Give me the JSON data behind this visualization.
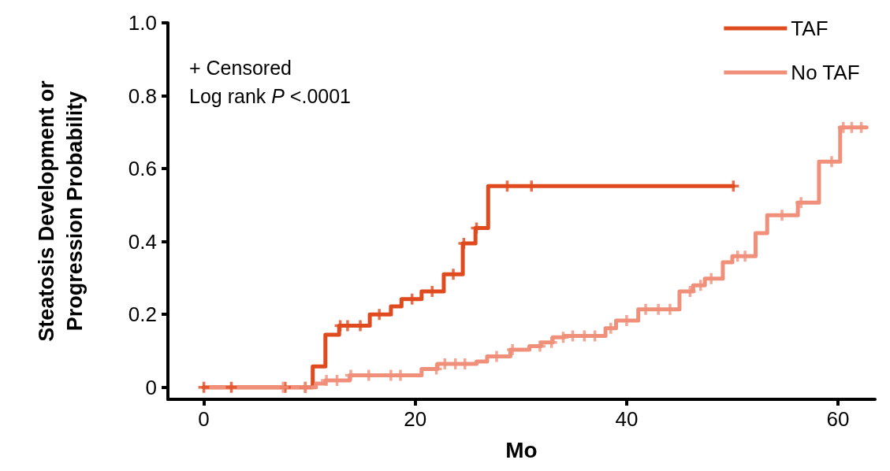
{
  "chart_data": {
    "type": "step",
    "xlabel": "Mo",
    "ylabel": "Steatosis Development or\nProgression Probability",
    "annotations": [
      "+ Censored",
      "Log rank P <.0001"
    ],
    "xlim": [
      -3.4,
      63.5
    ],
    "xticks": [
      0,
      20,
      40,
      60
    ],
    "ylim": [
      -0.033,
      1.0
    ],
    "yticks": [
      {
        "value": 0,
        "label": "0"
      },
      0.2,
      0.4,
      0.6,
      0.8,
      {
        "value": 1,
        "label": "1.0"
      }
    ],
    "grid": false,
    "legend": "top right",
    "marker": "none",
    "line_style": "solid",
    "series": [
      {
        "name": "TAF",
        "color": "#e04a1f",
        "x": [
          0,
          10.3,
          11.5,
          12.8,
          15.7,
          17.7,
          18.7,
          20.6,
          22.7,
          24.5,
          25.7,
          26.9,
          50.1
        ],
        "values": [
          0,
          0.057,
          0.144,
          0.169,
          0.2,
          0.222,
          0.242,
          0.263,
          0.31,
          0.395,
          0.437,
          0.552,
          0.552
        ]
      },
      {
        "name": "No TAF",
        "color": "#f0907a",
        "x": [
          0,
          10.6,
          11.5,
          13.8,
          20.6,
          22.1,
          25.8,
          26.8,
          29.0,
          30.8,
          31.9,
          33.0,
          34.1,
          38.0,
          39.0,
          41.1,
          45.0,
          46.3,
          47.4,
          49.1,
          50.0,
          52.2,
          53.3,
          56.2,
          58.2,
          60.2,
          62.7
        ],
        "values": [
          0,
          0.01,
          0.019,
          0.033,
          0.05,
          0.064,
          0.071,
          0.085,
          0.103,
          0.113,
          0.123,
          0.137,
          0.141,
          0.162,
          0.183,
          0.214,
          0.263,
          0.28,
          0.298,
          0.343,
          0.36,
          0.423,
          0.472,
          0.507,
          0.619,
          0.713,
          0.713
        ]
      },
      {
        "type": "scatter",
        "marker": "cross",
        "color": "#e04a1f",
        "x": [
          0,
          2.6,
          7.7,
          9.6,
          12.9,
          13.6,
          14.8,
          16.6,
          19.7,
          21.6,
          23.6,
          24.6,
          25.8,
          28.7,
          31.0,
          50.1
        ],
        "values": [
          0,
          0,
          0,
          0,
          0.169,
          0.169,
          0.169,
          0.2,
          0.242,
          0.263,
          0.31,
          0.395,
          0.437,
          0.552,
          0.552,
          0.552
        ]
      },
      {
        "type": "scatter",
        "marker": "cross",
        "color": "#f0907a",
        "x": [
          7.5,
          9.6,
          11.6,
          12.6,
          13.9,
          15.6,
          17.7,
          18.6,
          22.0,
          22.8,
          23.8,
          24.7,
          27.7,
          29.2,
          31.8,
          32.9,
          34.0,
          34.9,
          36.0,
          37.0,
          38.5,
          40.0,
          41.8,
          43.0,
          44.1,
          46.0,
          47.0,
          48.0,
          50.5,
          51.2,
          54.7,
          56.5,
          59.4,
          60.5,
          61.3,
          62.2
        ],
        "values": [
          0,
          0,
          0.019,
          0.019,
          0.033,
          0.033,
          0.033,
          0.033,
          0.05,
          0.064,
          0.064,
          0.064,
          0.085,
          0.103,
          0.113,
          0.123,
          0.137,
          0.141,
          0.141,
          0.141,
          0.162,
          0.183,
          0.214,
          0.214,
          0.214,
          0.263,
          0.28,
          0.298,
          0.36,
          0.36,
          0.472,
          0.507,
          0.619,
          0.713,
          0.713,
          0.713
        ]
      }
    ]
  }
}
